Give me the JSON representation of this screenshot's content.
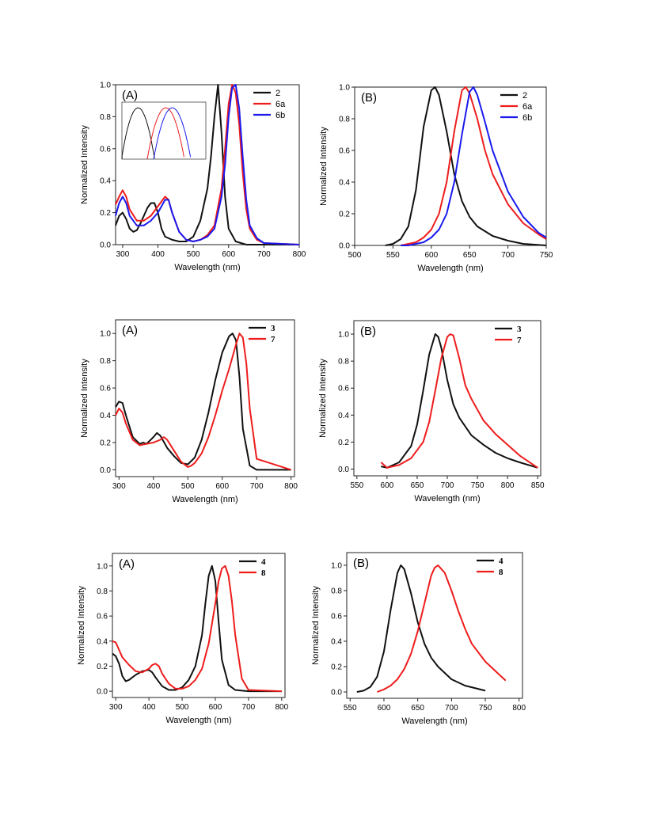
{
  "colors": {
    "black": "#111111",
    "red": "#ee1c1c",
    "blue": "#1a1aee"
  },
  "chart_data": [
    {
      "id": "row1-A",
      "type": "line",
      "panel_label": "(A)",
      "xlabel": "Wavelength (nm)",
      "ylabel": "Normalized Intensity",
      "xlim": [
        280,
        800
      ],
      "ylim": [
        0,
        1.0
      ],
      "xticks": [
        300,
        400,
        500,
        600,
        700,
        800
      ],
      "xtick_labels": [
        "300",
        "400",
        "500",
        "600",
        "700",
        "800"
      ],
      "yticks": [
        0.0,
        0.2,
        0.4,
        0.6,
        0.8,
        1.0
      ],
      "ytick_labels": [
        "0.0",
        "0.2",
        "0.4",
        "0.6",
        "0.8",
        "1.0"
      ],
      "legend_position": "top-right",
      "legend_font": "sans",
      "inset": true,
      "series": [
        {
          "name": "2",
          "color": "black",
          "x": [
            280,
            290,
            300,
            310,
            320,
            330,
            340,
            350,
            360,
            370,
            380,
            390,
            400,
            410,
            420,
            440,
            460,
            480,
            500,
            520,
            540,
            550,
            560,
            570,
            580,
            590,
            600,
            620,
            650,
            700,
            800
          ],
          "y": [
            0.12,
            0.18,
            0.2,
            0.16,
            0.1,
            0.08,
            0.09,
            0.13,
            0.18,
            0.23,
            0.26,
            0.26,
            0.2,
            0.1,
            0.05,
            0.03,
            0.02,
            0.02,
            0.05,
            0.15,
            0.35,
            0.55,
            0.8,
            1.0,
            0.7,
            0.3,
            0.1,
            0.02,
            0.0,
            0.0,
            0.0
          ]
        },
        {
          "name": "6a",
          "color": "red",
          "x": [
            280,
            290,
            300,
            310,
            320,
            340,
            360,
            380,
            400,
            420,
            430,
            440,
            460,
            480,
            500,
            520,
            540,
            560,
            580,
            590,
            600,
            610,
            620,
            630,
            640,
            650,
            660,
            680,
            700,
            800
          ],
          "y": [
            0.25,
            0.3,
            0.34,
            0.3,
            0.22,
            0.15,
            0.15,
            0.18,
            0.24,
            0.3,
            0.28,
            0.2,
            0.08,
            0.03,
            0.02,
            0.03,
            0.06,
            0.12,
            0.35,
            0.6,
            0.88,
            1.0,
            0.95,
            0.75,
            0.45,
            0.22,
            0.1,
            0.03,
            0.01,
            0.0
          ]
        },
        {
          "name": "6b",
          "color": "blue",
          "x": [
            280,
            290,
            300,
            310,
            320,
            340,
            360,
            380,
            400,
            420,
            430,
            440,
            460,
            480,
            500,
            520,
            540,
            560,
            580,
            590,
            600,
            610,
            620,
            630,
            640,
            650,
            660,
            680,
            700,
            800
          ],
          "y": [
            0.18,
            0.26,
            0.3,
            0.26,
            0.18,
            0.12,
            0.12,
            0.15,
            0.2,
            0.28,
            0.28,
            0.2,
            0.08,
            0.03,
            0.02,
            0.03,
            0.05,
            0.1,
            0.3,
            0.5,
            0.8,
            0.98,
            1.0,
            0.85,
            0.55,
            0.28,
            0.12,
            0.04,
            0.01,
            0.0
          ]
        }
      ]
    },
    {
      "id": "row1-B",
      "type": "line",
      "panel_label": "(B)",
      "xlabel": "Wavelength (nm)",
      "ylabel": "Normalized Intensity",
      "xlim": [
        500,
        750
      ],
      "ylim": [
        0,
        1.0
      ],
      "xticks": [
        500,
        550,
        600,
        650,
        700,
        750
      ],
      "xtick_labels": [
        "500",
        "550",
        "600",
        "650",
        "700",
        "750"
      ],
      "yticks": [
        0.0,
        0.2,
        0.4,
        0.6,
        0.8,
        1.0
      ],
      "ytick_labels": [
        "0.0",
        "0.2",
        "0.4",
        "0.6",
        "0.8",
        "1.0"
      ],
      "legend_position": "top-right",
      "legend_font": "sans",
      "series": [
        {
          "name": "2",
          "color": "black",
          "x": [
            540,
            550,
            560,
            570,
            580,
            590,
            600,
            605,
            610,
            620,
            630,
            640,
            650,
            660,
            680,
            700,
            720,
            750
          ],
          "y": [
            0.0,
            0.01,
            0.04,
            0.12,
            0.35,
            0.75,
            0.98,
            1.0,
            0.95,
            0.72,
            0.45,
            0.28,
            0.18,
            0.12,
            0.06,
            0.03,
            0.01,
            0.0
          ]
        },
        {
          "name": "6a",
          "color": "red",
          "x": [
            560,
            570,
            580,
            590,
            600,
            610,
            620,
            630,
            640,
            645,
            650,
            660,
            670,
            680,
            700,
            720,
            740,
            750
          ],
          "y": [
            0.0,
            0.01,
            0.02,
            0.05,
            0.1,
            0.2,
            0.4,
            0.72,
            0.98,
            1.0,
            0.96,
            0.8,
            0.6,
            0.45,
            0.26,
            0.14,
            0.07,
            0.04
          ]
        },
        {
          "name": "6b",
          "color": "blue",
          "x": [
            560,
            570,
            580,
            590,
            600,
            610,
            620,
            630,
            640,
            650,
            655,
            660,
            670,
            680,
            700,
            720,
            740,
            750
          ],
          "y": [
            0.0,
            0.0,
            0.01,
            0.02,
            0.05,
            0.1,
            0.2,
            0.4,
            0.7,
            0.97,
            1.0,
            0.95,
            0.78,
            0.6,
            0.34,
            0.18,
            0.08,
            0.05
          ]
        }
      ]
    },
    {
      "id": "row2-A",
      "type": "line",
      "panel_label": "(A)",
      "xlabel": "Wavelength (nm)",
      "ylabel": "Normalized Intensity",
      "xlim": [
        290,
        810
      ],
      "ylim": [
        -0.05,
        1.1
      ],
      "xticks": [
        300,
        400,
        500,
        600,
        700,
        800
      ],
      "xtick_labels": [
        "300",
        "400",
        "500",
        "600",
        "700",
        "800"
      ],
      "yticks": [
        0.0,
        0.2,
        0.4,
        0.6,
        0.8,
        1.0
      ],
      "ytick_labels": [
        "0.0",
        "0.2",
        "0.4",
        "0.6",
        "0.8",
        "1.0"
      ],
      "legend_position": "top-right",
      "legend_font": "serif",
      "series": [
        {
          "name": "3",
          "color": "black",
          "x": [
            290,
            300,
            310,
            320,
            340,
            360,
            370,
            380,
            400,
            410,
            420,
            440,
            460,
            480,
            500,
            520,
            540,
            560,
            580,
            600,
            620,
            630,
            640,
            650,
            660,
            680,
            700,
            800
          ],
          "y": [
            0.46,
            0.5,
            0.49,
            0.4,
            0.24,
            0.19,
            0.2,
            0.19,
            0.24,
            0.27,
            0.25,
            0.16,
            0.1,
            0.05,
            0.04,
            0.09,
            0.22,
            0.42,
            0.66,
            0.86,
            0.98,
            1.0,
            0.95,
            0.68,
            0.3,
            0.03,
            0.0,
            0.0
          ]
        },
        {
          "name": "7",
          "color": "red",
          "x": [
            290,
            300,
            310,
            320,
            340,
            360,
            380,
            400,
            420,
            430,
            440,
            460,
            480,
            500,
            510,
            520,
            540,
            560,
            580,
            600,
            620,
            640,
            650,
            660,
            670,
            680,
            700,
            800
          ],
          "y": [
            0.4,
            0.45,
            0.42,
            0.34,
            0.22,
            0.18,
            0.19,
            0.2,
            0.22,
            0.24,
            0.22,
            0.14,
            0.06,
            0.02,
            0.03,
            0.05,
            0.12,
            0.24,
            0.4,
            0.58,
            0.74,
            0.92,
            1.0,
            0.97,
            0.78,
            0.45,
            0.08,
            0.0
          ]
        }
      ]
    },
    {
      "id": "row2-B",
      "type": "line",
      "panel_label": "(B)",
      "xlabel": "Wavelength (nm)",
      "ylabel": "Normalized Intensity",
      "xlim": [
        545,
        855
      ],
      "ylim": [
        -0.05,
        1.1
      ],
      "xticks": [
        550,
        600,
        650,
        700,
        750,
        800,
        850
      ],
      "xtick_labels": [
        "550",
        "600",
        "650",
        "700",
        "750",
        "800",
        "850"
      ],
      "yticks": [
        0.0,
        0.2,
        0.4,
        0.6,
        0.8,
        1.0
      ],
      "ytick_labels": [
        "0.0",
        "0.2",
        "0.4",
        "0.6",
        "0.8",
        "1.0"
      ],
      "legend_position": "top-right",
      "legend_font": "serif",
      "series": [
        {
          "name": "3",
          "color": "black",
          "x": [
            590,
            600,
            620,
            640,
            650,
            660,
            670,
            680,
            685,
            690,
            700,
            710,
            720,
            740,
            760,
            780,
            800,
            820,
            850
          ],
          "y": [
            0.02,
            0.01,
            0.05,
            0.17,
            0.33,
            0.58,
            0.85,
            1.0,
            0.98,
            0.9,
            0.66,
            0.48,
            0.38,
            0.25,
            0.18,
            0.12,
            0.08,
            0.05,
            0.01
          ]
        },
        {
          "name": "7",
          "color": "red",
          "x": [
            590,
            600,
            620,
            640,
            660,
            670,
            680,
            690,
            700,
            705,
            710,
            720,
            730,
            740,
            760,
            780,
            800,
            820,
            850
          ],
          "y": [
            0.05,
            0.01,
            0.03,
            0.08,
            0.2,
            0.35,
            0.58,
            0.82,
            0.98,
            1.0,
            0.99,
            0.82,
            0.62,
            0.52,
            0.36,
            0.26,
            0.18,
            0.1,
            0.01
          ]
        }
      ]
    },
    {
      "id": "row3-A",
      "type": "line",
      "panel_label": "(A)",
      "xlabel": "Wavelength (nm)",
      "ylabel": "Normalized Intensity",
      "xlim": [
        290,
        810
      ],
      "ylim": [
        -0.05,
        1.1
      ],
      "xticks": [
        300,
        400,
        500,
        600,
        700,
        800
      ],
      "xtick_labels": [
        "300",
        "400",
        "500",
        "600",
        "700",
        "800"
      ],
      "yticks": [
        0.0,
        0.2,
        0.4,
        0.6,
        0.8,
        1.0
      ],
      "ytick_labels": [
        "0.0",
        "0.2",
        "0.4",
        "0.6",
        "0.8",
        "1.0"
      ],
      "legend_position": "top-right",
      "legend_font": "serif",
      "series": [
        {
          "name": "4",
          "color": "black",
          "x": [
            290,
            300,
            310,
            320,
            330,
            340,
            360,
            380,
            400,
            410,
            420,
            440,
            460,
            480,
            500,
            520,
            540,
            560,
            570,
            580,
            590,
            600,
            610,
            620,
            640,
            660,
            700,
            800
          ],
          "y": [
            0.3,
            0.28,
            0.22,
            0.12,
            0.08,
            0.09,
            0.13,
            0.16,
            0.17,
            0.15,
            0.11,
            0.04,
            0.01,
            0.01,
            0.03,
            0.09,
            0.2,
            0.45,
            0.7,
            0.92,
            1.0,
            0.88,
            0.55,
            0.25,
            0.05,
            0.01,
            0.0,
            0.0
          ]
        },
        {
          "name": "8",
          "color": "red",
          "x": [
            290,
            300,
            310,
            320,
            340,
            360,
            380,
            400,
            410,
            420,
            430,
            440,
            460,
            480,
            500,
            520,
            540,
            560,
            580,
            600,
            610,
            620,
            630,
            640,
            650,
            660,
            680,
            700,
            800
          ],
          "y": [
            0.4,
            0.39,
            0.33,
            0.27,
            0.21,
            0.16,
            0.15,
            0.18,
            0.21,
            0.22,
            0.2,
            0.14,
            0.06,
            0.02,
            0.02,
            0.04,
            0.09,
            0.18,
            0.38,
            0.7,
            0.88,
            0.98,
            1.0,
            0.92,
            0.72,
            0.45,
            0.1,
            0.01,
            0.0
          ]
        }
      ]
    },
    {
      "id": "row3-B",
      "type": "line",
      "panel_label": "(B)",
      "xlabel": "Wavelength (nm)",
      "ylabel": "Normalized Intensity",
      "xlim": [
        545,
        805
      ],
      "ylim": [
        -0.05,
        1.1
      ],
      "xticks": [
        550,
        600,
        650,
        700,
        750,
        800
      ],
      "xtick_labels": [
        "550",
        "600",
        "650",
        "700",
        "750",
        "800"
      ],
      "yticks": [
        0.0,
        0.2,
        0.4,
        0.6,
        0.8,
        1.0
      ],
      "ytick_labels": [
        "0.0",
        "0.2",
        "0.4",
        "0.6",
        "0.8",
        "1.0"
      ],
      "legend_position": "top-right",
      "legend_font": "serif",
      "series": [
        {
          "name": "4",
          "color": "black",
          "x": [
            560,
            570,
            580,
            590,
            600,
            610,
            620,
            625,
            630,
            640,
            650,
            660,
            670,
            680,
            700,
            720,
            750
          ],
          "y": [
            0.0,
            0.01,
            0.04,
            0.12,
            0.32,
            0.65,
            0.94,
            1.0,
            0.97,
            0.78,
            0.55,
            0.38,
            0.27,
            0.2,
            0.1,
            0.05,
            0.01
          ]
        },
        {
          "name": "8",
          "color": "red",
          "x": [
            590,
            600,
            610,
            620,
            630,
            640,
            650,
            660,
            670,
            675,
            680,
            690,
            700,
            710,
            720,
            730,
            750,
            780
          ],
          "y": [
            0.0,
            0.02,
            0.05,
            0.1,
            0.18,
            0.3,
            0.48,
            0.7,
            0.92,
            0.98,
            1.0,
            0.94,
            0.8,
            0.64,
            0.5,
            0.38,
            0.24,
            0.09
          ]
        }
      ]
    }
  ]
}
